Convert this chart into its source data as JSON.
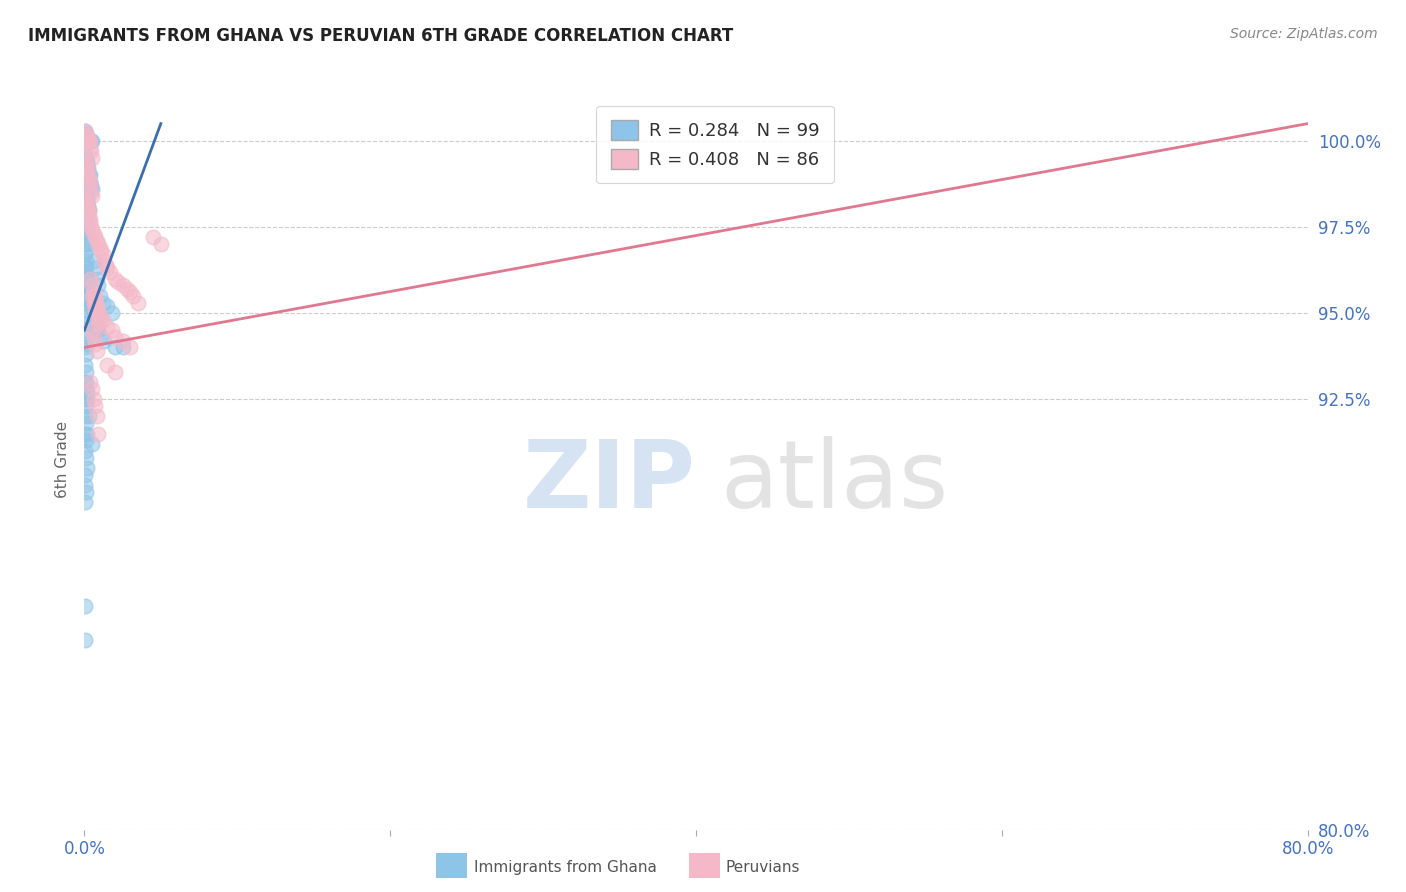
{
  "title": "IMMIGRANTS FROM GHANA VS PERUVIAN 6TH GRADE CORRELATION CHART",
  "source": "Source: ZipAtlas.com",
  "ylabel": "6th Grade",
  "xlim": [
    0.0,
    80.0
  ],
  "ylim": [
    80.0,
    101.5
  ],
  "yticks": [
    80.0,
    92.5,
    95.0,
    97.5,
    100.0
  ],
  "ytick_labels": [
    "80.0%",
    "92.5%",
    "95.0%",
    "97.5%",
    "100.0%"
  ],
  "xtick_positions": [
    0,
    20,
    40,
    60,
    80
  ],
  "xtick_labels": [
    "0.0%",
    "",
    "",
    "",
    "80.0%"
  ],
  "blue_R": 0.284,
  "blue_N": 99,
  "pink_R": 0.408,
  "pink_N": 86,
  "blue_color": "#8ec4e8",
  "pink_color": "#f4b8c8",
  "blue_line_color": "#3a6faf",
  "pink_line_color": "#e07890",
  "legend_label_blue": "Immigrants from Ghana",
  "legend_label_pink": "Peruvians",
  "blue_line_x": [
    0.0,
    5.0
  ],
  "blue_line_y": [
    94.5,
    100.5
  ],
  "pink_line_x": [
    0.0,
    80.0
  ],
  "pink_line_y": [
    94.0,
    100.5
  ],
  "blue_scatter_x": [
    0.05,
    0.1,
    0.15,
    0.2,
    0.25,
    0.3,
    0.35,
    0.4,
    0.45,
    0.5,
    0.05,
    0.1,
    0.15,
    0.2,
    0.25,
    0.3,
    0.35,
    0.4,
    0.45,
    0.5,
    0.05,
    0.1,
    0.15,
    0.2,
    0.25,
    0.3,
    0.05,
    0.1,
    0.15,
    0.2,
    0.05,
    0.1,
    0.15,
    0.2,
    0.05,
    0.1,
    0.05,
    0.1,
    0.05,
    0.1,
    0.05,
    0.1,
    0.15,
    0.2,
    0.25,
    0.05,
    0.1,
    0.15,
    0.05,
    0.1,
    0.6,
    0.7,
    0.8,
    0.9,
    1.0,
    1.2,
    1.5,
    1.8,
    0.5,
    0.6,
    0.7,
    0.8,
    0.9,
    1.1,
    1.3,
    2.0,
    2.5,
    0.05,
    0.1,
    0.15,
    0.05,
    0.1,
    0.15,
    0.05,
    0.1,
    0.05,
    0.1,
    0.05,
    0.1,
    0.15,
    0.05,
    0.1,
    0.05,
    0.1,
    0.05,
    0.1,
    0.05,
    0.1,
    0.15,
    0.05,
    0.05,
    0.1,
    0.05,
    0.5,
    0.3,
    0.2,
    0.15,
    0.1,
    0.05,
    0.05
  ],
  "blue_scatter_y": [
    100.3,
    100.2,
    100.1,
    100.0,
    100.0,
    100.0,
    100.0,
    100.0,
    100.0,
    100.0,
    99.6,
    99.5,
    99.4,
    99.3,
    99.2,
    99.0,
    99.0,
    98.8,
    98.7,
    98.6,
    98.5,
    98.4,
    98.3,
    98.2,
    98.1,
    98.0,
    97.8,
    97.7,
    97.6,
    97.5,
    97.4,
    97.3,
    97.2,
    97.0,
    97.0,
    96.8,
    96.7,
    96.5,
    96.4,
    96.3,
    96.2,
    96.1,
    96.0,
    95.9,
    95.8,
    95.7,
    95.6,
    95.5,
    95.4,
    95.3,
    96.5,
    96.3,
    96.0,
    95.8,
    95.5,
    95.3,
    95.2,
    95.0,
    95.2,
    95.0,
    94.8,
    94.6,
    94.5,
    94.3,
    94.2,
    94.0,
    94.0,
    95.1,
    94.9,
    94.7,
    94.5,
    94.3,
    94.1,
    94.0,
    93.8,
    93.5,
    93.3,
    93.0,
    92.8,
    92.7,
    92.5,
    92.3,
    92.0,
    91.8,
    91.5,
    91.3,
    91.0,
    90.8,
    90.5,
    90.3,
    90.0,
    89.8,
    89.5,
    91.2,
    92.0,
    91.5,
    92.5,
    93.0,
    86.5,
    85.5
  ],
  "pink_scatter_x": [
    0.05,
    0.1,
    0.15,
    0.2,
    0.25,
    0.3,
    0.35,
    0.4,
    0.45,
    0.5,
    0.05,
    0.1,
    0.15,
    0.2,
    0.25,
    0.3,
    0.35,
    0.4,
    0.45,
    0.5,
    0.05,
    0.1,
    0.15,
    0.2,
    0.25,
    0.3,
    0.35,
    0.4,
    0.45,
    0.5,
    0.6,
    0.7,
    0.8,
    0.9,
    1.0,
    1.1,
    1.2,
    1.3,
    1.4,
    1.5,
    1.7,
    2.0,
    2.2,
    2.5,
    2.8,
    3.0,
    3.2,
    3.5,
    0.6,
    0.7,
    0.8,
    0.9,
    1.0,
    1.2,
    1.5,
    1.8,
    2.0,
    2.5,
    3.0,
    0.4,
    0.5,
    0.6,
    0.7,
    0.8,
    0.9,
    1.0,
    0.5,
    0.6,
    0.7,
    0.8,
    0.9,
    0.5,
    0.6,
    0.7,
    0.8,
    1.5,
    2.0,
    0.4,
    0.5,
    0.6,
    0.7,
    0.8,
    0.9,
    5.0,
    4.5,
    0.3
  ],
  "pink_scatter_y": [
    100.3,
    100.2,
    100.1,
    100.0,
    100.0,
    100.0,
    100.0,
    99.8,
    99.7,
    99.5,
    99.4,
    99.3,
    99.2,
    99.1,
    99.0,
    98.9,
    98.8,
    98.7,
    98.5,
    98.4,
    98.3,
    98.2,
    98.1,
    98.0,
    97.9,
    97.8,
    97.7,
    97.6,
    97.5,
    97.4,
    97.3,
    97.2,
    97.1,
    97.0,
    96.9,
    96.8,
    96.7,
    96.5,
    96.4,
    96.3,
    96.2,
    96.0,
    95.9,
    95.8,
    95.7,
    95.6,
    95.5,
    95.3,
    95.5,
    95.3,
    95.2,
    95.0,
    94.9,
    94.8,
    94.6,
    94.5,
    94.3,
    94.2,
    94.0,
    96.0,
    95.8,
    95.6,
    95.4,
    95.2,
    95.0,
    94.8,
    95.5,
    95.3,
    95.1,
    94.9,
    94.7,
    94.5,
    94.3,
    94.1,
    93.9,
    93.5,
    93.3,
    93.0,
    92.8,
    92.5,
    92.3,
    92.0,
    91.5,
    97.0,
    97.2,
    98.0
  ],
  "watermark_zip": "ZIP",
  "watermark_atlas": "atlas",
  "background_color": "#ffffff",
  "grid_color": "#cccccc"
}
